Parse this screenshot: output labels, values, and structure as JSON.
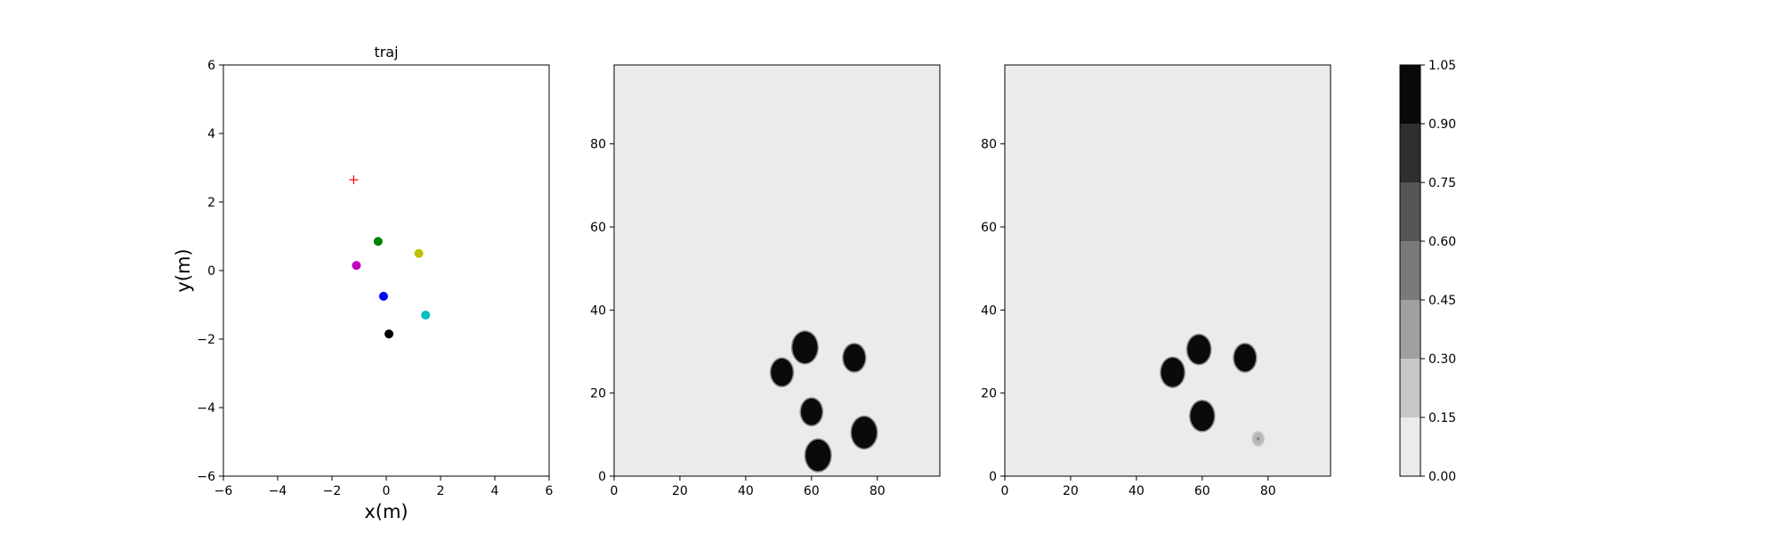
{
  "chart_data": [
    {
      "type": "scatter",
      "title": "traj",
      "xlabel": "x(m)",
      "ylabel": "y(m)",
      "xlim": [
        -6,
        6
      ],
      "ylim": [
        -6,
        6
      ],
      "xticks": [
        -6,
        -4,
        -2,
        0,
        2,
        4,
        6
      ],
      "yticks": [
        -6,
        -4,
        -2,
        0,
        2,
        4,
        6
      ],
      "grid": false,
      "points": [
        {
          "x": -0.3,
          "y": 0.85,
          "color": "#008000",
          "marker": "circle"
        },
        {
          "x": 1.2,
          "y": 0.5,
          "color": "#bfbf00",
          "marker": "circle"
        },
        {
          "x": -1.1,
          "y": 0.15,
          "color": "#bf00bf",
          "marker": "circle"
        },
        {
          "x": -0.1,
          "y": -0.75,
          "color": "#0000ff",
          "marker": "circle"
        },
        {
          "x": 1.45,
          "y": -1.3,
          "color": "#00bfbf",
          "marker": "circle"
        },
        {
          "x": 0.1,
          "y": -1.85,
          "color": "#000000",
          "marker": "circle"
        },
        {
          "x": -1.2,
          "y": 2.65,
          "color": "#ff0000",
          "marker": "plus"
        }
      ]
    },
    {
      "type": "heatmap",
      "xlim": [
        0,
        99
      ],
      "ylim": [
        0,
        99
      ],
      "xticks": [
        0,
        20,
        40,
        60,
        80
      ],
      "yticks": [
        0,
        20,
        40,
        60,
        80
      ],
      "background_value": 0.0,
      "blobs": [
        {
          "cx": 58,
          "cy": 31,
          "r": 3.8,
          "value": 1.0
        },
        {
          "cx": 51,
          "cy": 25,
          "r": 3.3,
          "value": 1.0
        },
        {
          "cx": 73,
          "cy": 28.5,
          "r": 3.3,
          "value": 1.0
        },
        {
          "cx": 60,
          "cy": 15.5,
          "r": 3.2,
          "value": 1.0
        },
        {
          "cx": 76,
          "cy": 10.5,
          "r": 3.8,
          "value": 1.0
        },
        {
          "cx": 62,
          "cy": 5,
          "r": 3.8,
          "value": 1.0
        }
      ]
    },
    {
      "type": "heatmap",
      "xlim": [
        0,
        99
      ],
      "ylim": [
        0,
        99
      ],
      "xticks": [
        0,
        20,
        40,
        60,
        80
      ],
      "yticks": [
        0,
        20,
        40,
        60,
        80
      ],
      "background_value": 0.0,
      "blobs": [
        {
          "cx": 59,
          "cy": 30.5,
          "r": 3.5,
          "value": 1.0
        },
        {
          "cx": 51,
          "cy": 25,
          "r": 3.5,
          "value": 1.0
        },
        {
          "cx": 73,
          "cy": 28.5,
          "r": 3.3,
          "value": 1.0
        },
        {
          "cx": 60,
          "cy": 14.5,
          "r": 3.6,
          "value": 1.0
        },
        {
          "cx": 77,
          "cy": 9,
          "r": 1.6,
          "value": 0.2
        }
      ]
    }
  ],
  "colorbar": {
    "levels": [
      0.0,
      0.15,
      0.3,
      0.45,
      0.6,
      0.75,
      0.9,
      1.05
    ],
    "labels": [
      "0.00",
      "0.15",
      "0.30",
      "0.45",
      "0.60",
      "0.75",
      "0.90",
      "1.05"
    ],
    "colors": [
      "#ebebeb",
      "#c8c8c8",
      "#a0a0a0",
      "#7a7a7a",
      "#565656",
      "#2f2f2f",
      "#090909"
    ]
  }
}
